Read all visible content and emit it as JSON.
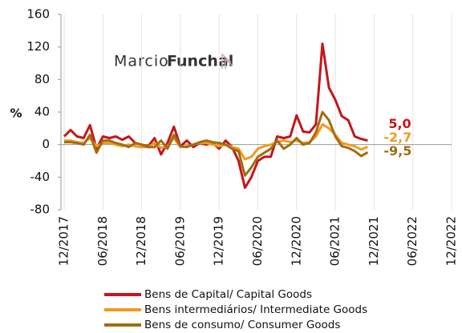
{
  "chart_data": {
    "type": "line",
    "ylabel": "%",
    "watermark": {
      "light": "Marcio",
      "bold": "Funchal"
    },
    "categories": [
      "12/2017",
      null,
      null,
      null,
      null,
      null,
      "06/2018",
      null,
      null,
      null,
      null,
      null,
      "12/2018",
      null,
      null,
      null,
      null,
      null,
      "06/2019",
      null,
      null,
      null,
      null,
      null,
      "12/2019",
      null,
      null,
      null,
      null,
      null,
      "06/2020",
      null,
      null,
      null,
      null,
      null,
      "12/2020",
      null,
      null,
      null,
      null,
      null,
      "06/2021",
      null,
      null,
      null,
      null,
      null,
      "12/2021",
      null,
      null,
      null,
      null,
      null,
      "06/2022",
      null,
      null,
      null,
      null,
      null,
      "12/2022"
    ],
    "ylim": [
      -80,
      160
    ],
    "yticks": [
      -80,
      -40,
      0,
      40,
      80,
      120,
      160
    ],
    "series": [
      {
        "name": "Bens de Capital/ Capital Goods",
        "color": "#c4161c",
        "end_label": "5,0",
        "values": [
          10,
          18,
          10,
          8,
          24,
          -5,
          10,
          8,
          10,
          6,
          10,
          2,
          0,
          -2,
          8,
          -12,
          2,
          22,
          -2,
          5,
          -3,
          2,
          0,
          2,
          -5,
          5,
          -3,
          -20,
          -53,
          -40,
          -20,
          -15,
          -15,
          10,
          8,
          10,
          36,
          16,
          15,
          25,
          124,
          70,
          55,
          35,
          30,
          10,
          7,
          5.0,
          null,
          null,
          null,
          null,
          null,
          null,
          null,
          null,
          null,
          null,
          null,
          null,
          null
        ]
      },
      {
        "name": "Bens intermediários/ Intermediate Goods",
        "color": "#f39a1e",
        "end_label": "-2,7",
        "values": [
          5,
          5,
          3,
          2,
          8,
          -2,
          2,
          2,
          0,
          -2,
          0,
          -2,
          -3,
          -3,
          2,
          -4,
          -2,
          8,
          -3,
          -2,
          0,
          2,
          2,
          0,
          -2,
          0,
          -3,
          -5,
          -18,
          -15,
          -5,
          -2,
          0,
          3,
          5,
          3,
          5,
          2,
          3,
          10,
          25,
          20,
          12,
          2,
          0,
          -2,
          -6,
          -2.7,
          null,
          null,
          null,
          null,
          null,
          null,
          null,
          null,
          null,
          null,
          null,
          null,
          null
        ]
      },
      {
        "name": "Bens de consumo/ Consumer Goods",
        "color": "#a06d12",
        "end_label": "-9,5",
        "values": [
          3,
          3,
          2,
          0,
          12,
          -10,
          5,
          5,
          2,
          0,
          -3,
          2,
          0,
          -3,
          -3,
          5,
          -5,
          12,
          -2,
          -3,
          0,
          3,
          5,
          3,
          2,
          0,
          -5,
          -8,
          -38,
          -28,
          -15,
          -10,
          -5,
          5,
          -5,
          0,
          8,
          0,
          2,
          15,
          40,
          30,
          10,
          -2,
          -4,
          -8,
          -14,
          -9.5,
          null,
          null,
          null,
          null,
          null,
          null,
          null,
          null,
          null,
          null,
          null,
          null,
          null
        ]
      }
    ]
  }
}
